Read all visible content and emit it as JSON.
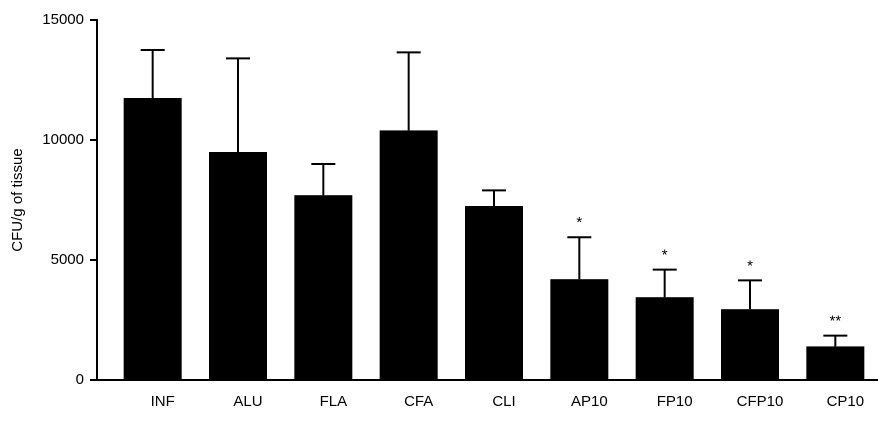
{
  "chart_data": {
    "type": "bar",
    "y_label": "CFU/g of tissue",
    "categories": [
      "INF",
      "ALU",
      "FLA",
      "CFA",
      "CLI",
      "AP10",
      "FP10",
      "CFP10",
      "CP10"
    ],
    "values": [
      11750,
      9500,
      7700,
      10400,
      7250,
      4200,
      3450,
      2950,
      1400
    ],
    "errors": [
      2000,
      3900,
      1300,
      3250,
      650,
      1750,
      1150,
      1200,
      450
    ],
    "annotations": [
      null,
      null,
      null,
      null,
      null,
      "*",
      "*",
      "*",
      "**"
    ],
    "color": "#000000",
    "ylim": [
      0,
      15000
    ],
    "yticks": [
      0,
      5000,
      10000,
      15000
    ],
    "grid": false
  }
}
